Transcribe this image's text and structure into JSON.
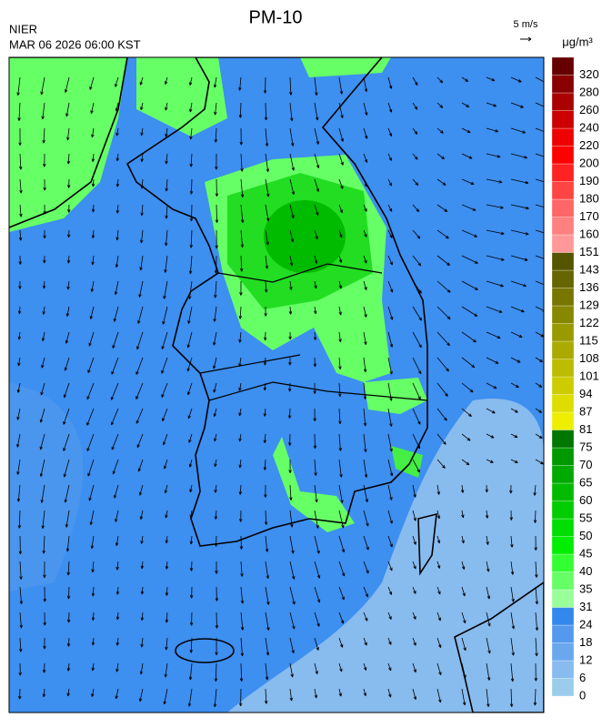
{
  "header": {
    "title": "PM-10",
    "agency": "NIER",
    "timestamp": "MAR 06 2026 06:00 KST",
    "wind_scale": "5 m/s",
    "unit": "μg/m³"
  },
  "colorbar": {
    "levels": [
      0,
      6,
      12,
      18,
      24,
      31,
      35,
      40,
      45,
      50,
      55,
      60,
      65,
      70,
      75,
      81,
      87,
      94,
      101,
      108,
      115,
      122,
      129,
      136,
      143,
      151,
      160,
      170,
      180,
      190,
      200,
      220,
      240,
      260,
      280,
      320
    ],
    "colors": [
      "#9cccec",
      "#88bbee",
      "#6aa8ee",
      "#5599ee",
      "#3388ee",
      "#99ff99",
      "#66ff66",
      "#33ff33",
      "#00ee00",
      "#00dd00",
      "#00cc00",
      "#00bb00",
      "#00aa00",
      "#009900",
      "#007700",
      "#eeee00",
      "#dddd00",
      "#cccc00",
      "#bbbb00",
      "#aaaa00",
      "#999900",
      "#888800",
      "#777700",
      "#666600",
      "#555500",
      "#ff9999",
      "#ff8080",
      "#ff6666",
      "#ff4444",
      "#ff2222",
      "#ff0000",
      "#ee0000",
      "#cc0000",
      "#aa0000",
      "#880000",
      "#660000"
    ]
  }
}
